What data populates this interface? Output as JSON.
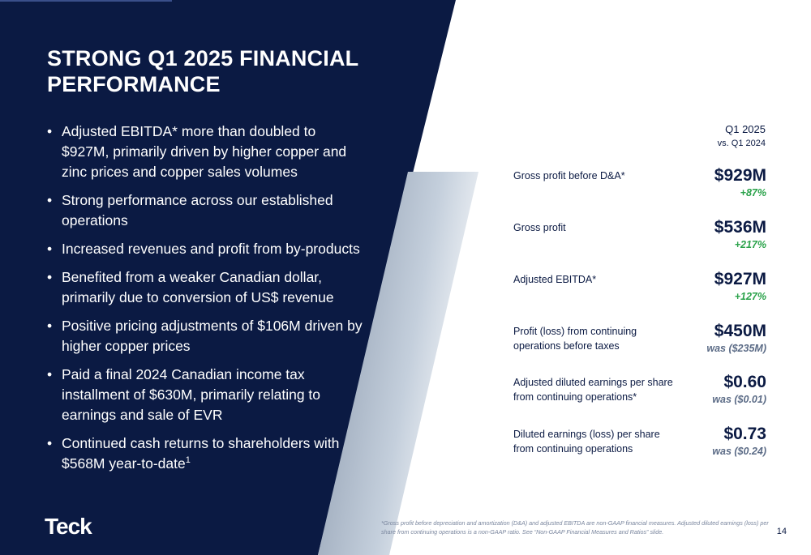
{
  "slide": {
    "title": "STRONG Q1 2025 FINANCIAL PERFORMANCE",
    "bullets": [
      {
        "text": "Adjusted EBITDA* more than doubled to $927M, primarily driven by higher copper and zinc prices and copper sales volumes",
        "sup": ""
      },
      {
        "text": "Strong performance across our established operations",
        "sup": ""
      },
      {
        "text": "Increased revenues and profit from by-products",
        "sup": ""
      },
      {
        "text": "Benefited from a weaker Canadian dollar, primarily due to conversion of US$ revenue",
        "sup": ""
      },
      {
        "text": "Positive pricing adjustments of $106M driven by higher copper prices",
        "sup": ""
      },
      {
        "text": "Paid a final 2024 Canadian income tax installment of $630M, primarily relating to earnings and sale of EVR",
        "sup": ""
      },
      {
        "text": "Continued cash returns to shareholders with $568M year-to-date",
        "sup": "1"
      }
    ],
    "bullet_glyph": "•",
    "logo": "Teck",
    "period_line1": "Q1 2025",
    "period_line2": "vs. Q1 2024",
    "metrics": [
      {
        "label": "Gross profit before D&A*",
        "value": "$929M",
        "change": "+87%",
        "tone": "green"
      },
      {
        "label": "Gross profit",
        "value": "$536M",
        "change": "+217%",
        "tone": "green"
      },
      {
        "label": "Adjusted EBITDA*",
        "value": "$927M",
        "change": "+127%",
        "tone": "green"
      },
      {
        "label": "Profit (loss) from continuing operations before taxes",
        "value": "$450M",
        "change": "was ($235M)",
        "tone": "gray"
      },
      {
        "label": "Adjusted diluted earnings per share from continuing operations*",
        "value": "$0.60",
        "change": "was ($0.01)",
        "tone": "gray"
      },
      {
        "label": "Diluted earnings (loss) per share from continuing operations",
        "value": "$0.73",
        "change": "was ($0.24)",
        "tone": "gray"
      }
    ],
    "footnote": "*Gross profit before depreciation and amortization (D&A) and adjusted EBITDA are non-GAAP financial measures. Adjusted diluted earnings (loss) per share from continuing operations is a non-GAAP ratio. See “Non-GAAP Financial Measures and Ratios” slide.",
    "page_number": "14",
    "colors": {
      "navy": "#0b1a43",
      "green": "#2aa24a",
      "gray": "#5b6b86"
    }
  }
}
